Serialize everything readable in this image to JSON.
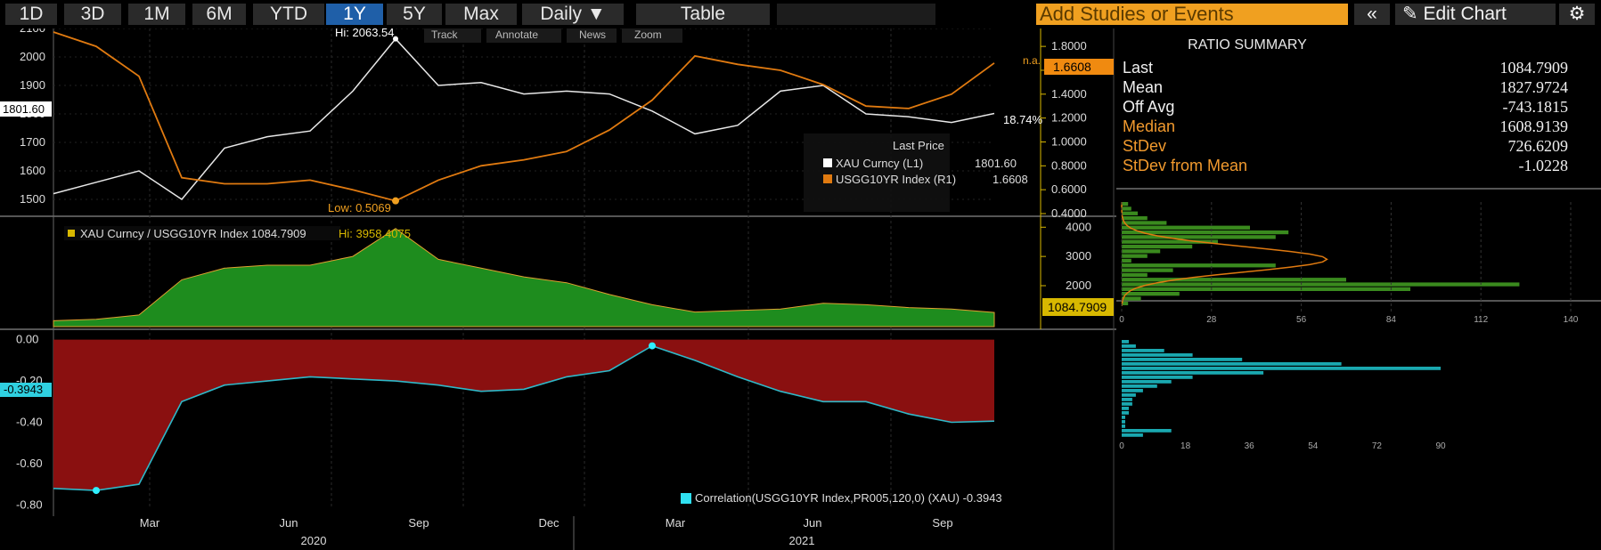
{
  "toolbar": {
    "ranges": [
      "1D",
      "3D",
      "1M",
      "6M",
      "YTD",
      "1Y",
      "5Y",
      "Max"
    ],
    "active_range": "1Y",
    "frequency": "Daily",
    "frequency_arrow": "▼",
    "table_label": "Table",
    "studies_placeholder": "Add Studies or Events",
    "collapse_symbol": "«",
    "edit_chart_label": "Edit Chart",
    "edit_icon": "pencil-icon",
    "settings_icon": "gear-icon",
    "track_label": "Track",
    "annotate_label": "Annotate",
    "news_label": "News",
    "zoom_label": "Zoom"
  },
  "colors": {
    "background": "#000000",
    "gold": "#e8e8e8",
    "yield": "#e07a10",
    "ratio_fill": "#1e8c1e",
    "corr_line": "#2fb8c8",
    "corr_fill": "#8a1010",
    "accent_orange": "#f0a020",
    "axis_yellow": "#d8b800"
  },
  "top_panel": {
    "hi_label": "Hi: 2063.54",
    "low_label": "Low: 0.5069",
    "gold_last_badge": "1801.60",
    "yield_last_badge": "1.6608",
    "na_label": "n.a.",
    "pct_label": "18.74%",
    "left_ticks": [
      "2100",
      "2000",
      "1900",
      "1800",
      "1700",
      "1600",
      "1500"
    ],
    "right_ticks": [
      "1.8000",
      "1.6000",
      "1.4000",
      "1.2000",
      "1.0000",
      "0.8000",
      "0.6000",
      "0.4000"
    ],
    "legend": {
      "header": "Last Price",
      "rows": [
        {
          "name": "XAU Curncy  (L1)",
          "value": "1801.60"
        },
        {
          "name": "USGG10YR Index  (R1)",
          "value": "1.6608"
        }
      ]
    }
  },
  "mid_panel": {
    "legend_text": "XAU Curncy / USGG10YR Index 1084.7909",
    "hi_text": "Hi: 3958.4075",
    "right_ticks": [
      "4000",
      "3000",
      "2000"
    ],
    "last_badge": "1084.7909",
    "hist_x_ticks": [
      "0",
      "28",
      "56",
      "84",
      "112",
      "140"
    ]
  },
  "bottom_panel": {
    "left_ticks": [
      "0.00",
      "-0.20",
      "-0.40",
      "-0.60",
      "-0.80"
    ],
    "last_badge": "-0.3943",
    "legend_text": "Correlation(USGG10YR Index,PR005,120,0) (XAU) -0.3943",
    "hist_x_ticks": [
      "0",
      "18",
      "36",
      "54",
      "72",
      "90"
    ]
  },
  "x_axis": {
    "months": [
      "Mar",
      "Jun",
      "Sep",
      "Dec",
      "Mar",
      "Jun",
      "Sep"
    ],
    "years": [
      "2020",
      "2021"
    ]
  },
  "summary": {
    "title": "RATIO SUMMARY",
    "rows": [
      {
        "label": "Last",
        "value": "1084.7909",
        "tone": "white"
      },
      {
        "label": "Mean",
        "value": "1827.9724",
        "tone": "white"
      },
      {
        "label": "Off Avg",
        "value": "-743.1815",
        "tone": "white"
      },
      {
        "label": "Median",
        "value": "1608.9139",
        "tone": "orange"
      },
      {
        "label": "StDev",
        "value": "726.6209",
        "tone": "orange"
      },
      {
        "label": "StDev from Mean",
        "value": "-1.0228",
        "tone": "orange"
      }
    ]
  },
  "chart_data": [
    {
      "type": "line",
      "series": [
        {
          "name": "XAU Curncy (L1)",
          "x": [
            "2019-12",
            "2020-01",
            "2020-02",
            "2020-03",
            "2020-04",
            "2020-05",
            "2020-06",
            "2020-07",
            "2020-08",
            "2020-09",
            "2020-10",
            "2020-11",
            "2020-12",
            "2021-01",
            "2021-02",
            "2021-03",
            "2021-04",
            "2021-05",
            "2021-06",
            "2021-07",
            "2021-08",
            "2021-09",
            "2021-10"
          ],
          "values": [
            1520,
            1560,
            1600,
            1500,
            1680,
            1720,
            1740,
            1880,
            2063.54,
            1900,
            1910,
            1870,
            1880,
            1870,
            1810,
            1730,
            1760,
            1880,
            1900,
            1800,
            1790,
            1770,
            1801.6
          ]
        },
        {
          "name": "USGG10YR Index (R1)",
          "x": [
            "2019-12",
            "2020-01",
            "2020-02",
            "2020-03",
            "2020-04",
            "2020-05",
            "2020-06",
            "2020-07",
            "2020-08",
            "2020-09",
            "2020-10",
            "2020-11",
            "2020-12",
            "2021-01",
            "2021-02",
            "2021-03",
            "2021-04",
            "2021-05",
            "2021-06",
            "2021-07",
            "2021-08",
            "2021-09",
            "2021-10"
          ],
          "values": [
            1.92,
            1.8,
            1.55,
            0.7,
            0.65,
            0.65,
            0.68,
            0.6,
            0.5069,
            0.68,
            0.8,
            0.85,
            0.92,
            1.1,
            1.35,
            1.72,
            1.65,
            1.6,
            1.48,
            1.3,
            1.28,
            1.4,
            1.6608
          ]
        }
      ],
      "ylim_left": [
        1450,
        2100
      ],
      "ylim_right": [
        0.4,
        1.95
      ]
    },
    {
      "type": "area",
      "series": [
        {
          "name": "XAU Curncy / USGG10YR Index",
          "x": [
            "2019-12",
            "2020-01",
            "2020-02",
            "2020-03",
            "2020-04",
            "2020-05",
            "2020-06",
            "2020-07",
            "2020-08",
            "2020-09",
            "2020-10",
            "2020-11",
            "2020-12",
            "2021-01",
            "2021-02",
            "2021-03",
            "2021-04",
            "2021-05",
            "2021-06",
            "2021-07",
            "2021-08",
            "2021-09",
            "2021-10"
          ],
          "values": [
            800,
            850,
            1000,
            2200,
            2600,
            2700,
            2700,
            3000,
            3958.4075,
            2900,
            2600,
            2300,
            2100,
            1700,
            1350,
            1100,
            1150,
            1200,
            1400,
            1350,
            1250,
            1200,
            1084.7909
          ]
        }
      ],
      "ylim": [
        600,
        4100
      ]
    },
    {
      "type": "area",
      "series": [
        {
          "name": "Correlation(USGG10YR Index,PR005,120,0) (XAU)",
          "x": [
            "2019-12",
            "2020-01",
            "2020-02",
            "2020-03",
            "2020-04",
            "2020-05",
            "2020-06",
            "2020-07",
            "2020-08",
            "2020-09",
            "2020-10",
            "2020-11",
            "2020-12",
            "2021-01",
            "2021-02",
            "2021-03",
            "2021-04",
            "2021-05",
            "2021-06",
            "2021-07",
            "2021-08",
            "2021-09",
            "2021-10"
          ],
          "values": [
            -0.72,
            -0.73,
            -0.7,
            -0.3,
            -0.22,
            -0.2,
            -0.18,
            -0.19,
            -0.2,
            -0.22,
            -0.25,
            -0.24,
            -0.18,
            -0.15,
            -0.03,
            -0.1,
            -0.18,
            -0.25,
            -0.3,
            -0.3,
            -0.36,
            -0.4,
            -0.3943
          ]
        }
      ],
      "ylim": [
        -0.82,
        0.02
      ]
    }
  ]
}
